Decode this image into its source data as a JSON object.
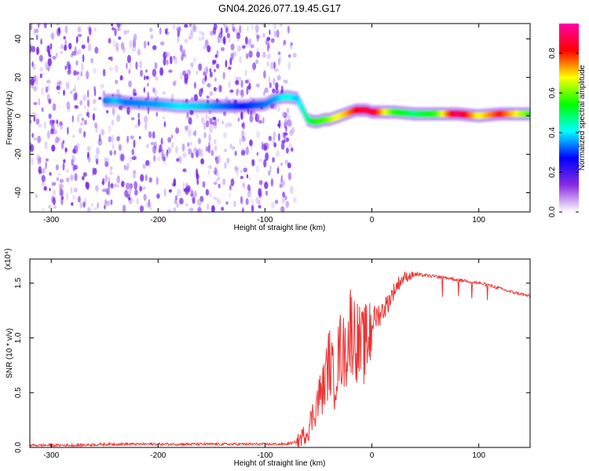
{
  "title": "GN04.2026.077.19.45.G17",
  "chart_data": [
    {
      "type": "heatmap",
      "xlabel": "Height of straight line (km)",
      "ylabel": "Frequency (Hz)",
      "xlim": [
        -320,
        148
      ],
      "ylim": [
        -50,
        48
      ],
      "xticks": [
        -300,
        -200,
        -100,
        0,
        100
      ],
      "yticks": [
        -40,
        -20,
        0,
        20,
        40
      ],
      "noise_region_km": [
        -320,
        -72
      ],
      "ridge": {
        "name": "frequency ridge",
        "x": [
          -250,
          -240,
          -230,
          -200,
          -180,
          -160,
          -140,
          -120,
          -100,
          -90,
          -80,
          -70,
          -65,
          -60,
          -55,
          -50,
          -45,
          -40,
          -35,
          -30,
          -25,
          -20,
          -15,
          -10,
          -5,
          0,
          10,
          20,
          40,
          60,
          80,
          100,
          120,
          148
        ],
        "y": [
          8,
          8,
          7,
          6,
          5,
          5,
          5,
          5,
          6,
          9,
          10,
          9,
          4,
          -2,
          -3,
          -3,
          -2,
          -2,
          -1,
          0,
          1,
          2,
          3,
          3,
          3,
          2,
          2,
          2,
          1,
          1,
          1,
          0,
          1,
          1
        ],
        "amplitude": [
          0.35,
          0.4,
          0.35,
          0.38,
          0.42,
          0.4,
          0.35,
          0.3,
          0.35,
          0.38,
          0.45,
          0.4,
          0.45,
          0.5,
          0.55,
          0.6,
          0.6,
          0.65,
          0.7,
          0.72,
          0.75,
          0.8,
          0.85,
          0.9,
          0.9,
          0.92,
          0.75,
          0.6,
          0.5,
          0.6,
          0.95,
          0.7,
          0.85,
          0.6
        ]
      },
      "colorbar": {
        "label": "Normalized spectral amplitude",
        "range": [
          0.0,
          0.95
        ],
        "ticks": [
          "0.0",
          "0.2",
          "0.4",
          "0.6",
          "0.8"
        ],
        "colors": [
          "#ffffff",
          "#8a2be2",
          "#0000ff",
          "#00ffff",
          "#00ff00",
          "#ffff00",
          "#ff0000",
          "#ff00aa"
        ]
      }
    },
    {
      "type": "line",
      "xlabel": "Height of straight line (km)",
      "ylabel": "SNR (10 * v/v)",
      "yscale_label": "(x10⁴)",
      "xlim": [
        -320,
        148
      ],
      "ylim": [
        0,
        1.72
      ],
      "xticks": [
        -300,
        -200,
        -100,
        0,
        100
      ],
      "yticks": [
        "0.0",
        "0.5",
        "1.0",
        "1.5"
      ],
      "series": [
        {
          "name": "SNR",
          "color": "#ee3333",
          "x": [
            -320,
            -280,
            -240,
            -200,
            -160,
            -120,
            -100,
            -80,
            -70,
            -60,
            -55,
            -50,
            -45,
            -40,
            -35,
            -30,
            -25,
            -20,
            -15,
            -10,
            -5,
            0,
            5,
            10,
            15,
            20,
            25,
            30,
            40,
            50,
            60,
            70,
            80,
            90,
            100,
            110,
            120,
            130,
            140,
            148
          ],
          "y": [
            0.02,
            0.02,
            0.03,
            0.03,
            0.03,
            0.03,
            0.03,
            0.03,
            0.05,
            0.15,
            0.3,
            0.45,
            0.55,
            0.8,
            0.6,
            0.9,
            0.85,
            1.1,
            1.0,
            0.9,
            0.95,
            1.15,
            1.2,
            1.25,
            1.32,
            1.42,
            1.5,
            1.55,
            1.58,
            1.57,
            1.56,
            1.55,
            1.53,
            1.52,
            1.5,
            1.48,
            1.45,
            1.42,
            1.4,
            1.38
          ]
        }
      ]
    }
  ]
}
